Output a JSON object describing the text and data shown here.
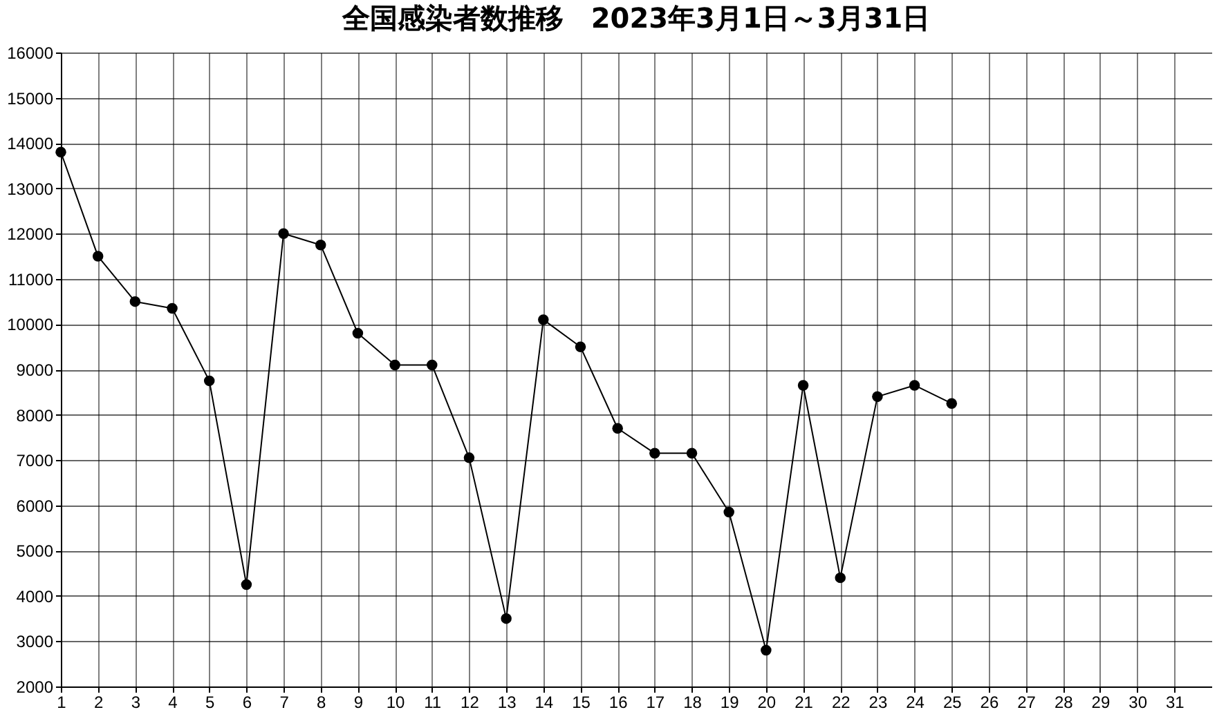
{
  "chart_data": {
    "type": "line",
    "title": "全国感染者数推移　2023年3月1日～3月31日",
    "x": [
      1,
      2,
      3,
      4,
      5,
      6,
      7,
      8,
      9,
      10,
      11,
      12,
      13,
      14,
      15,
      16,
      17,
      18,
      19,
      20,
      21,
      22,
      23,
      24,
      25
    ],
    "series": [
      {
        "color": "#000000",
        "values": [
          13800,
          11500,
          10500,
          10350,
          8750,
          4250,
          12000,
          11750,
          9800,
          9100,
          9100,
          7050,
          3500,
          10100,
          9500,
          7700,
          7150,
          7150,
          5850,
          2800,
          8650,
          4400,
          8400,
          8650,
          8250
        ]
      }
    ],
    "xlim": [
      1,
      32
    ],
    "xticks": [
      1,
      2,
      3,
      4,
      5,
      6,
      7,
      8,
      9,
      10,
      11,
      12,
      13,
      14,
      15,
      16,
      17,
      18,
      19,
      20,
      21,
      22,
      23,
      24,
      25,
      26,
      27,
      28,
      29,
      30,
      31
    ],
    "ylim": [
      2000,
      16000
    ],
    "yticks": [
      2000,
      3000,
      4000,
      5000,
      6000,
      7000,
      8000,
      9000,
      10000,
      11000,
      12000,
      13000,
      14000,
      15000,
      16000
    ],
    "grid": true,
    "marker": "circle",
    "line_style": "solid"
  }
}
